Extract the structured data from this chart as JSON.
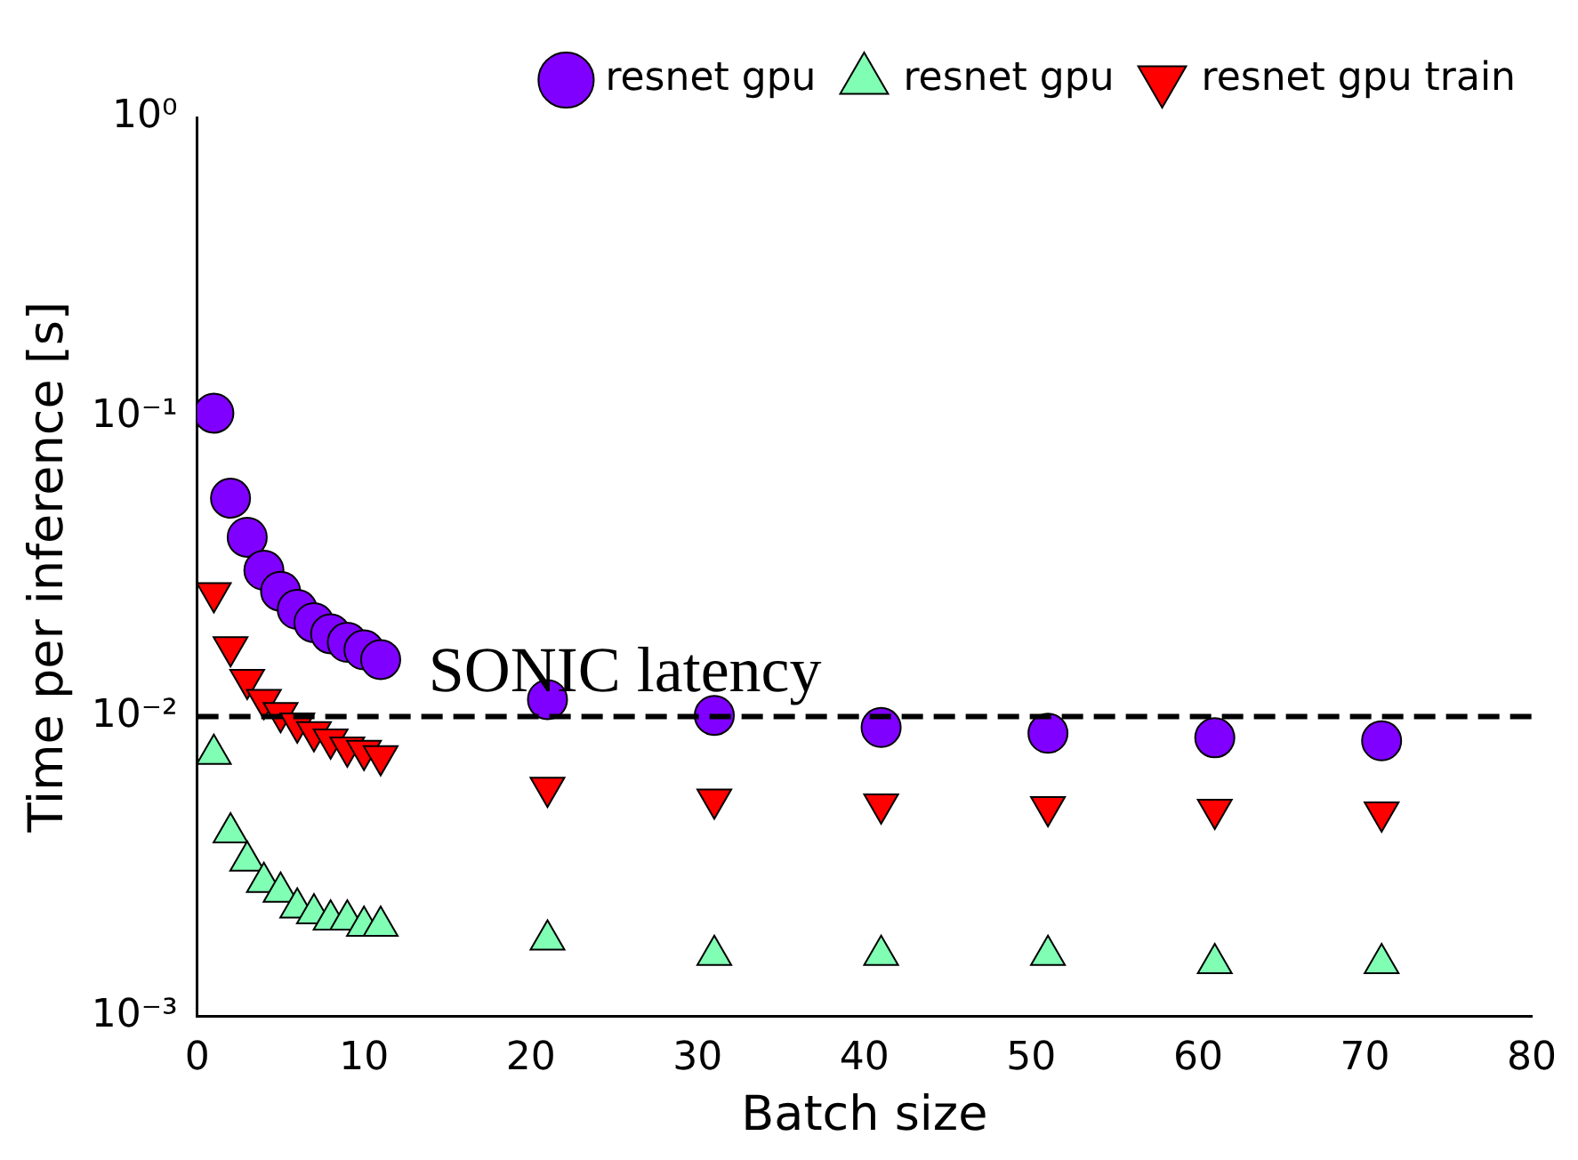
{
  "chart_data": {
    "type": "scatter",
    "xlabel": "Batch size",
    "ylabel": "Time per inference [s]",
    "log": "y",
    "xlim": [
      0,
      80
    ],
    "xticks": [
      0,
      10,
      20,
      30,
      40,
      50,
      60,
      70,
      80
    ],
    "ylim": [
      0.001,
      1
    ],
    "yticks": [
      {
        "value": 0.001,
        "label": "10⁻³"
      },
      {
        "value": 0.01,
        "label": "10⁻²"
      },
      {
        "value": 0.1,
        "label": "10⁻¹"
      },
      {
        "value": 1,
        "label": "10⁰"
      }
    ],
    "grid": false,
    "legend": "top right",
    "x": [
      1,
      2,
      3,
      4,
      5,
      6,
      7,
      8,
      9,
      10,
      11,
      21,
      31,
      41,
      51,
      61,
      71
    ],
    "series": [
      {
        "name": "resnet gpu",
        "color": "#8000ff",
        "marker": "circle",
        "values": [
          0.103,
          0.0536,
          0.0397,
          0.0308,
          0.0262,
          0.0228,
          0.0206,
          0.0189,
          0.0177,
          0.0167,
          0.0155,
          0.0114,
          0.0101,
          0.0092,
          0.0088,
          0.0085,
          0.0083
        ]
      },
      {
        "name": "resnet gpu",
        "color": "#80ffb4",
        "marker": "triangle",
        "values": [
          0.0075,
          0.0041,
          0.0033,
          0.0028,
          0.0026,
          0.0023,
          0.0022,
          0.0021,
          0.0021,
          0.002,
          0.002,
          0.0018,
          0.0016,
          0.0016,
          0.0016,
          0.0015,
          0.0015
        ]
      },
      {
        "name": "resnet gpu train",
        "color": "#ff0000",
        "marker": "triangle-down",
        "values": [
          0.0259,
          0.0171,
          0.0133,
          0.0114,
          0.0103,
          0.0095,
          0.0089,
          0.0084,
          0.0079,
          0.0077,
          0.0074,
          0.0058,
          0.0053,
          0.0051,
          0.005,
          0.0049,
          0.0048
        ]
      }
    ],
    "ref_lines": [
      {
        "axis": "y",
        "value": 0.01,
        "label": "SONIC latency",
        "color": "#000000",
        "line_style": "dashed"
      }
    ]
  }
}
